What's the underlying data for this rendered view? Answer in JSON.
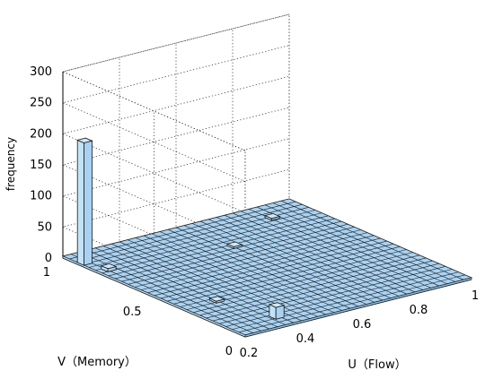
{
  "chart_data": {
    "type": "bar3d",
    "title": "",
    "xlabel": "U（Flow）",
    "ylabel": "V（Memory）",
    "zlabel": "frequency",
    "xlim": [
      0.2,
      1
    ],
    "ylim": [
      0,
      1
    ],
    "zlim": [
      0,
      300
    ],
    "xticks": [
      "0.2",
      "0.4",
      "0.6",
      "0.8",
      "1"
    ],
    "yticks": [
      "0",
      "0.5",
      "1"
    ],
    "zticks": [
      "0",
      "50",
      "100",
      "150",
      "200",
      "250",
      "300"
    ],
    "grid": true,
    "bar_color": "#a9d2f2",
    "edge_color": "#1a1a1a",
    "baseline_level": 3,
    "bars": [
      {
        "u": 0.2,
        "v": 0.92,
        "value": 200
      },
      {
        "u": 0.35,
        "v": 0.1,
        "value": 22
      },
      {
        "u": 0.22,
        "v": 0.82,
        "value": 8
      },
      {
        "u": 0.3,
        "v": 0.35,
        "value": 6
      },
      {
        "u": 0.62,
        "v": 0.75,
        "value": 6
      },
      {
        "u": 0.85,
        "v": 0.9,
        "value": 6
      }
    ]
  }
}
